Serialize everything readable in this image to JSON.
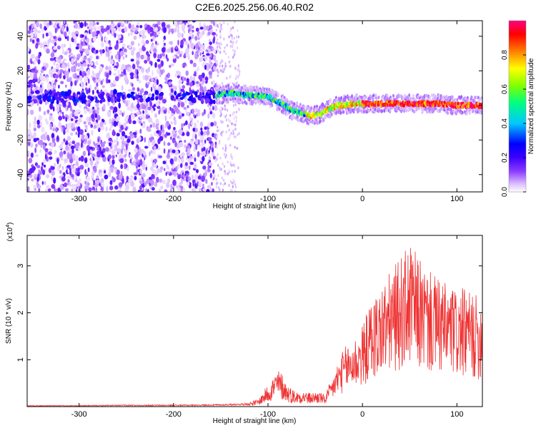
{
  "title": "C2E6.2025.256.06.40.R02",
  "chart_data": [
    {
      "type": "heatmap",
      "title": "C2E6.2025.256.06.40.R02",
      "xlabel": "Height of straight line (km)",
      "ylabel": "Frequency (Hz)",
      "xlim": [
        -355,
        127
      ],
      "ylim": [
        -50,
        49
      ],
      "xticks": [
        -300,
        -200,
        -100,
        0,
        100
      ],
      "xtick_labels": [
        "-300",
        "-200",
        "-100",
        "0",
        "100"
      ],
      "yticks": [
        -40,
        -20,
        0,
        20,
        40
      ],
      "ytick_labels": [
        "-40",
        "-20",
        "0",
        "20",
        "40"
      ],
      "noise_region_x": [
        -355,
        -155
      ],
      "sparse_region_x": [
        -155,
        -130
      ],
      "signal_trace": {
        "x": [
          -155,
          -140,
          -120,
          -100,
          -85,
          -75,
          -65,
          -55,
          -45,
          -35,
          -25,
          -10,
          0,
          20,
          40,
          60,
          80,
          100,
          127
        ],
        "freq": [
          6,
          7,
          6,
          5,
          1,
          -3,
          -4,
          -6,
          -5,
          -2,
          0,
          1,
          1,
          1,
          1,
          1,
          1,
          0,
          0
        ]
      },
      "noise_band_freq": 5,
      "colorbar": {
        "label": "Normalized spectral amplitude",
        "range": [
          0,
          1
        ],
        "ticks": [
          0.0,
          0.2,
          0.4,
          0.6,
          0.8
        ],
        "tick_labels": [
          "0.0",
          "0.2",
          "0.4",
          "0.6",
          "0.8"
        ],
        "colors": [
          "#ffffff",
          "#d9b8ff",
          "#8c3cff",
          "#3c00ff",
          "#0000ff",
          "#00c8ff",
          "#00ff80",
          "#80ff00",
          "#ffff00",
          "#ff8000",
          "#ff0000",
          "#ff0080"
        ]
      }
    },
    {
      "type": "line",
      "xlabel": "Height of straight line (km)",
      "ylabel": "SNR (10 * v/v)",
      "multiplier_label": "(x10",
      "multiplier_exp": "4",
      "xlim": [
        -355,
        127
      ],
      "ylim": [
        0,
        3.65
      ],
      "xticks": [
        -300,
        -200,
        -100,
        0,
        100
      ],
      "xtick_labels": [
        "-300",
        "-200",
        "-100",
        "0",
        "100"
      ],
      "yticks": [
        1,
        2,
        3
      ],
      "ytick_labels": [
        "1",
        "2",
        "3"
      ],
      "line_color": "#ee3333",
      "series": [
        {
          "name": "SNR",
          "x": [
            -355,
            -300,
            -250,
            -200,
            -150,
            -120,
            -110,
            -105,
            -100,
            -95,
            -90,
            -85,
            -80,
            -75,
            -70,
            -65,
            -60,
            -55,
            -50,
            -45,
            -40,
            -35,
            -30,
            -25,
            -20,
            -15,
            -10,
            -5,
            0,
            5,
            10,
            15,
            20,
            25,
            30,
            35,
            40,
            45,
            50,
            55,
            60,
            65,
            70,
            75,
            80,
            85,
            90,
            95,
            100,
            105,
            110,
            115,
            120,
            127
          ],
          "y": [
            0.02,
            0.02,
            0.03,
            0.03,
            0.04,
            0.06,
            0.1,
            0.2,
            0.3,
            0.4,
            0.5,
            0.45,
            0.3,
            0.25,
            0.2,
            0.22,
            0.2,
            0.18,
            0.2,
            0.2,
            0.15,
            0.3,
            0.5,
            0.7,
            0.85,
            0.95,
            1.0,
            1.1,
            1.2,
            1.4,
            1.6,
            1.7,
            1.8,
            1.9,
            2.0,
            2.1,
            2.2,
            2.3,
            2.4,
            2.3,
            2.2,
            2.1,
            2.0,
            1.95,
            1.9,
            1.85,
            1.8,
            1.8,
            1.7,
            1.75,
            1.7,
            1.7,
            1.65,
            1.6
          ]
        }
      ]
    }
  ]
}
